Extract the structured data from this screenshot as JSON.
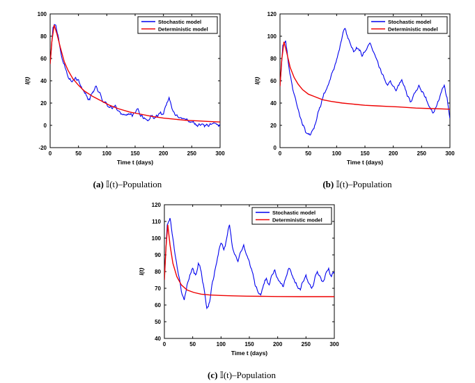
{
  "page": {
    "background": "#ffffff"
  },
  "colors": {
    "stochastic": "#0000ee",
    "deterministic": "#ee0000",
    "axis": "#000000"
  },
  "chart_data": [
    {
      "id": "a",
      "type": "line",
      "caption_label": "(a)",
      "caption_text": "𝕀(t)–Population",
      "xlabel": "Time t (days)",
      "ylabel": "I(t)",
      "xlim": [
        0,
        300
      ],
      "ylim": [
        -20,
        100
      ],
      "xticks": [
        0,
        50,
        100,
        150,
        200,
        250,
        300
      ],
      "yticks": [
        -20,
        0,
        20,
        40,
        60,
        80,
        100
      ],
      "legend": [
        "Stochastic model",
        "Deterministic model"
      ],
      "legend_position": "top-right",
      "grid": false,
      "series": [
        {
          "name": "Stochastic model",
          "color": "#0000ee",
          "noisy": true,
          "x_step": 5,
          "y": [
            55,
            88,
            90,
            78,
            62,
            55,
            46,
            42,
            40,
            43,
            41,
            35,
            30,
            26,
            23,
            30,
            35,
            30,
            26,
            21,
            19,
            16,
            15,
            18,
            13,
            10,
            10,
            9,
            10,
            8,
            11,
            15,
            8,
            6,
            5,
            5,
            9,
            7,
            8,
            12,
            10,
            18,
            25,
            15,
            10,
            8,
            7,
            6,
            5,
            3,
            3,
            1,
            -1,
            0,
            1,
            0,
            -1,
            1,
            2,
            1,
            0
          ]
        },
        {
          "name": "Deterministic model",
          "color": "#ee0000",
          "noisy": false,
          "x": [
            0,
            3,
            7,
            12,
            18,
            25,
            32,
            40,
            50,
            60,
            75,
            90,
            105,
            120,
            140,
            160,
            180,
            200,
            220,
            240,
            260,
            280,
            300
          ],
          "y": [
            55,
            75,
            90,
            82,
            70,
            57,
            49,
            42,
            36,
            31,
            26,
            22,
            18,
            15,
            12,
            10,
            8,
            6.5,
            5.5,
            4.5,
            4,
            3.5,
            3
          ]
        }
      ]
    },
    {
      "id": "b",
      "type": "line",
      "caption_label": "(b)",
      "caption_text": "𝕀(t)–Population",
      "xlabel": "Time t (days)",
      "ylabel": "I(t)",
      "xlim": [
        0,
        300
      ],
      "ylim": [
        0,
        120
      ],
      "xticks": [
        0,
        50,
        100,
        150,
        200,
        250,
        300
      ],
      "yticks": [
        0,
        20,
        40,
        60,
        80,
        100,
        120
      ],
      "legend": [
        "Stochastic model",
        "Deterministic model"
      ],
      "legend_position": "top-right",
      "grid": false,
      "series": [
        {
          "name": "Stochastic model",
          "color": "#0000ee",
          "noisy": true,
          "x_step": 5,
          "y": [
            55,
            92,
            96,
            75,
            60,
            48,
            38,
            28,
            20,
            14,
            12,
            13,
            17,
            26,
            36,
            44,
            50,
            56,
            64,
            70,
            79,
            88,
            100,
            107,
            98,
            92,
            86,
            90,
            87,
            82,
            86,
            91,
            93,
            86,
            80,
            72,
            66,
            61,
            56,
            60,
            55,
            51,
            56,
            61,
            55,
            46,
            41,
            46,
            51,
            56,
            50,
            46,
            41,
            36,
            31,
            36,
            42,
            50,
            56,
            45,
            26
          ]
        },
        {
          "name": "Deterministic model",
          "color": "#ee0000",
          "noisy": false,
          "x": [
            0,
            3,
            7,
            12,
            18,
            25,
            32,
            40,
            50,
            60,
            75,
            90,
            110,
            130,
            150,
            170,
            190,
            210,
            240,
            270,
            300
          ],
          "y": [
            55,
            78,
            95,
            85,
            72,
            63,
            57,
            52,
            48,
            46,
            43,
            41.5,
            40,
            39,
            38,
            37.5,
            37,
            36.5,
            35.5,
            35,
            34.5
          ]
        }
      ]
    },
    {
      "id": "c",
      "type": "line",
      "caption_label": "(c)",
      "caption_text": "𝕀(t)–Population",
      "xlabel": "Time t (days)",
      "ylabel": "I(t)",
      "xlim": [
        0,
        300
      ],
      "ylim": [
        40,
        120
      ],
      "xticks": [
        0,
        50,
        100,
        150,
        200,
        250,
        300
      ],
      "yticks": [
        40,
        50,
        60,
        70,
        80,
        90,
        100,
        110,
        120
      ],
      "legend": [
        "Stochastic model",
        "Deterministic model"
      ],
      "legend_position": "top-right",
      "grid": false,
      "series": [
        {
          "name": "Stochastic model",
          "color": "#0000ee",
          "noisy": true,
          "x_step": 5,
          "y": [
            75,
            108,
            112,
            100,
            88,
            78,
            68,
            63,
            72,
            78,
            82,
            78,
            85,
            80,
            70,
            58,
            62,
            74,
            82,
            90,
            97,
            93,
            100,
            108,
            95,
            90,
            86,
            92,
            96,
            90,
            86,
            80,
            72,
            68,
            66,
            72,
            76,
            72,
            78,
            81,
            76,
            73,
            71,
            77,
            82,
            78,
            74,
            71,
            69,
            74,
            78,
            73,
            70,
            75,
            80,
            77,
            74,
            79,
            82,
            77,
            80
          ]
        },
        {
          "name": "Deterministic model",
          "color": "#ee0000",
          "noisy": false,
          "x": [
            0,
            3,
            6,
            10,
            15,
            22,
            30,
            40,
            52,
            65,
            80,
            100,
            120,
            145,
            170,
            200,
            240,
            300
          ],
          "y": [
            75,
            95,
            108,
            96,
            85,
            77,
            72,
            69,
            67.5,
            66.5,
            66,
            65.7,
            65.5,
            65.3,
            65.2,
            65.1,
            65,
            65
          ]
        }
      ]
    }
  ]
}
